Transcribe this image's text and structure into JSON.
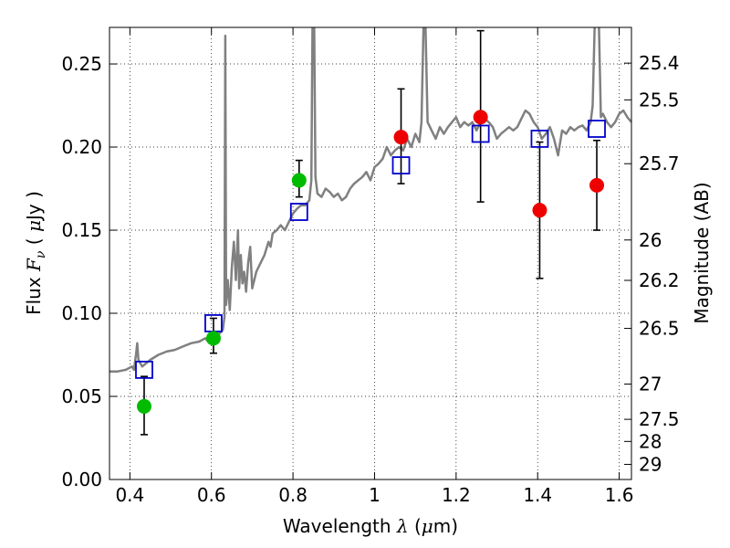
{
  "chart_data": {
    "type": "scatter",
    "xlabel": "Wavelength  λ (μm)",
    "ylabel": "Flux  F_ν  ( μJy )",
    "ylabel_right": "Magnitude (AB)",
    "xlim": [
      0.35,
      1.63
    ],
    "ylim": [
      0.0,
      0.272
    ],
    "grid": true,
    "grid_style": "dotted",
    "x_ticks": [
      0.4,
      0.6,
      0.8,
      1.0,
      1.2,
      1.4,
      1.6
    ],
    "x_tick_labels": [
      "0.4",
      "0.6",
      "0.8",
      "1",
      "1.2",
      "1.4",
      "1.6"
    ],
    "y_ticks": [
      0.0,
      0.05,
      0.1,
      0.15,
      0.2,
      0.25
    ],
    "y_tick_labels": [
      "0.00",
      "0.05",
      "0.10",
      "0.15",
      "0.20",
      "0.25"
    ],
    "right_axis_ticks": [
      {
        "label": "25.4",
        "flux": 0.2505
      },
      {
        "label": "25.5",
        "flux": 0.2284
      },
      {
        "label": "25.7",
        "flux": 0.19
      },
      {
        "label": "26",
        "flux": 0.1441
      },
      {
        "label": "26.2",
        "flux": 0.1198
      },
      {
        "label": "26.5",
        "flux": 0.0909
      },
      {
        "label": "27",
        "flux": 0.0574
      },
      {
        "label": "27.5",
        "flux": 0.0362
      },
      {
        "label": "28",
        "flux": 0.0229
      },
      {
        "label": "29",
        "flux": 0.0091
      }
    ],
    "series": [
      {
        "type": "line",
        "color": "#808080",
        "points": [
          [
            0.35,
            0.065
          ],
          [
            0.37,
            0.065
          ],
          [
            0.39,
            0.066
          ],
          [
            0.405,
            0.068
          ],
          [
            0.41,
            0.066
          ],
          [
            0.415,
            0.075
          ],
          [
            0.418,
            0.082
          ],
          [
            0.421,
            0.072
          ],
          [
            0.43,
            0.068
          ],
          [
            0.45,
            0.072
          ],
          [
            0.47,
            0.075
          ],
          [
            0.49,
            0.077
          ],
          [
            0.51,
            0.078
          ],
          [
            0.53,
            0.08
          ],
          [
            0.55,
            0.082
          ],
          [
            0.57,
            0.083
          ],
          [
            0.585,
            0.085
          ],
          [
            0.595,
            0.082
          ],
          [
            0.61,
            0.085
          ],
          [
            0.62,
            0.088
          ],
          [
            0.628,
            0.09
          ],
          [
            0.632,
            0.098
          ],
          [
            0.634,
            0.267
          ],
          [
            0.636,
            0.105
          ],
          [
            0.64,
            0.12
          ],
          [
            0.645,
            0.102
          ],
          [
            0.65,
            0.128
          ],
          [
            0.655,
            0.143
          ],
          [
            0.66,
            0.12
          ],
          [
            0.665,
            0.15
          ],
          [
            0.668,
            0.115
          ],
          [
            0.672,
            0.135
          ],
          [
            0.676,
            0.118
          ],
          [
            0.68,
            0.125
          ],
          [
            0.685,
            0.113
          ],
          [
            0.69,
            0.13
          ],
          [
            0.695,
            0.14
          ],
          [
            0.7,
            0.115
          ],
          [
            0.71,
            0.125
          ],
          [
            0.72,
            0.13
          ],
          [
            0.73,
            0.135
          ],
          [
            0.74,
            0.143
          ],
          [
            0.745,
            0.14
          ],
          [
            0.75,
            0.148
          ],
          [
            0.76,
            0.15
          ],
          [
            0.77,
            0.153
          ],
          [
            0.78,
            0.15
          ],
          [
            0.79,
            0.155
          ],
          [
            0.8,
            0.16
          ],
          [
            0.81,
            0.163
          ],
          [
            0.82,
            0.165
          ],
          [
            0.83,
            0.165
          ],
          [
            0.84,
            0.168
          ],
          [
            0.845,
            0.18
          ],
          [
            0.848,
            0.275
          ],
          [
            0.852,
            0.275
          ],
          [
            0.855,
            0.182
          ],
          [
            0.86,
            0.172
          ],
          [
            0.87,
            0.17
          ],
          [
            0.88,
            0.175
          ],
          [
            0.89,
            0.173
          ],
          [
            0.9,
            0.17
          ],
          [
            0.91,
            0.172
          ],
          [
            0.92,
            0.168
          ],
          [
            0.93,
            0.17
          ],
          [
            0.94,
            0.175
          ],
          [
            0.95,
            0.178
          ],
          [
            0.96,
            0.18
          ],
          [
            0.97,
            0.182
          ],
          [
            0.98,
            0.185
          ],
          [
            0.99,
            0.18
          ],
          [
            1.0,
            0.188
          ],
          [
            1.01,
            0.19
          ],
          [
            1.02,
            0.193
          ],
          [
            1.03,
            0.2
          ],
          [
            1.04,
            0.195
          ],
          [
            1.05,
            0.198
          ],
          [
            1.06,
            0.2
          ],
          [
            1.07,
            0.198
          ],
          [
            1.08,
            0.205
          ],
          [
            1.09,
            0.2
          ],
          [
            1.1,
            0.208
          ],
          [
            1.11,
            0.203
          ],
          [
            1.115,
            0.215
          ],
          [
            1.12,
            0.272
          ],
          [
            1.125,
            0.273
          ],
          [
            1.13,
            0.215
          ],
          [
            1.14,
            0.21
          ],
          [
            1.15,
            0.205
          ],
          [
            1.16,
            0.212
          ],
          [
            1.17,
            0.208
          ],
          [
            1.18,
            0.212
          ],
          [
            1.19,
            0.215
          ],
          [
            1.2,
            0.218
          ],
          [
            1.21,
            0.212
          ],
          [
            1.22,
            0.215
          ],
          [
            1.23,
            0.213
          ],
          [
            1.24,
            0.215
          ],
          [
            1.25,
            0.21
          ],
          [
            1.26,
            0.215
          ],
          [
            1.27,
            0.217
          ],
          [
            1.28,
            0.215
          ],
          [
            1.29,
            0.212
          ],
          [
            1.3,
            0.205
          ],
          [
            1.31,
            0.208
          ],
          [
            1.32,
            0.21
          ],
          [
            1.33,
            0.212
          ],
          [
            1.34,
            0.21
          ],
          [
            1.35,
            0.212
          ],
          [
            1.36,
            0.217
          ],
          [
            1.37,
            0.222
          ],
          [
            1.38,
            0.22
          ],
          [
            1.39,
            0.215
          ],
          [
            1.4,
            0.212
          ],
          [
            1.41,
            0.205
          ],
          [
            1.42,
            0.208
          ],
          [
            1.43,
            0.212
          ],
          [
            1.44,
            0.205
          ],
          [
            1.45,
            0.195
          ],
          [
            1.46,
            0.21
          ],
          [
            1.47,
            0.208
          ],
          [
            1.48,
            0.212
          ],
          [
            1.49,
            0.21
          ],
          [
            1.5,
            0.212
          ],
          [
            1.51,
            0.213
          ],
          [
            1.52,
            0.21
          ],
          [
            1.53,
            0.215
          ],
          [
            1.535,
            0.225
          ],
          [
            1.54,
            0.275
          ],
          [
            1.55,
            0.275
          ],
          [
            1.555,
            0.218
          ],
          [
            1.56,
            0.22
          ],
          [
            1.57,
            0.215
          ],
          [
            1.58,
            0.212
          ],
          [
            1.59,
            0.215
          ],
          [
            1.6,
            0.22
          ],
          [
            1.61,
            0.222
          ],
          [
            1.62,
            0.218
          ],
          [
            1.63,
            0.215
          ]
        ]
      },
      {
        "type": "model_squares",
        "color": "#0000cc",
        "points": [
          [
            0.435,
            0.066
          ],
          [
            0.605,
            0.094
          ],
          [
            0.815,
            0.161
          ],
          [
            1.065,
            0.189
          ],
          [
            1.26,
            0.208
          ],
          [
            1.405,
            0.205
          ],
          [
            1.545,
            0.211
          ]
        ]
      },
      {
        "type": "points",
        "color": "#00bb00",
        "points": [
          {
            "x": 0.435,
            "y": 0.044,
            "err_low": 0.027,
            "err_high": 0.062
          },
          {
            "x": 0.605,
            "y": 0.085,
            "err_low": 0.076,
            "err_high": 0.097
          },
          {
            "x": 0.815,
            "y": 0.18,
            "err_low": 0.17,
            "err_high": 0.192
          }
        ]
      },
      {
        "type": "points",
        "color": "#ee0000",
        "points": [
          {
            "x": 1.065,
            "y": 0.206,
            "err_low": 0.178,
            "err_high": 0.235
          },
          {
            "x": 1.26,
            "y": 0.218,
            "err_low": 0.167,
            "err_high": 0.27
          },
          {
            "x": 1.405,
            "y": 0.162,
            "err_low": 0.121,
            "err_high": 0.203
          },
          {
            "x": 1.545,
            "y": 0.177,
            "err_low": 0.15,
            "err_high": 0.204
          }
        ]
      }
    ]
  }
}
